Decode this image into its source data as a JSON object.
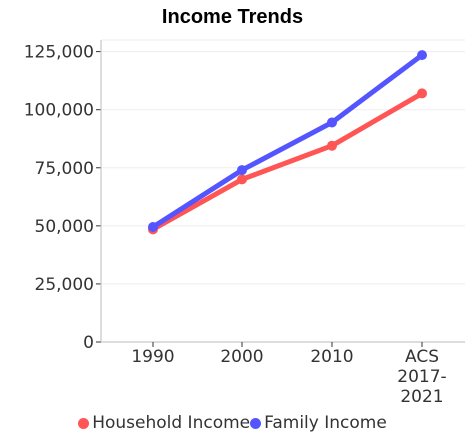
{
  "chart_data": {
    "type": "line",
    "title": "Income Trends",
    "categories": [
      "1990",
      "2000",
      "2010",
      "ACS 2017-2021"
    ],
    "category_lines": [
      [
        "1990"
      ],
      [
        "2000"
      ],
      [
        "2010"
      ],
      [
        "ACS",
        "2017-",
        "2021"
      ]
    ],
    "series": [
      {
        "name": "Household Income",
        "color": "#ff5555",
        "values": [
          48500,
          70000,
          84500,
          107000
        ]
      },
      {
        "name": "Family Income",
        "color": "#5555ff",
        "values": [
          49500,
          74000,
          94500,
          123500
        ]
      }
    ],
    "yticks": [
      "0",
      "25,000",
      "50,000",
      "75,000",
      "100,000",
      "125,000"
    ],
    "ytick_values": [
      0,
      25000,
      50000,
      75000,
      100000,
      125000
    ],
    "ylim": [
      0,
      130000
    ],
    "grid": true,
    "legend_position": "bottom"
  }
}
